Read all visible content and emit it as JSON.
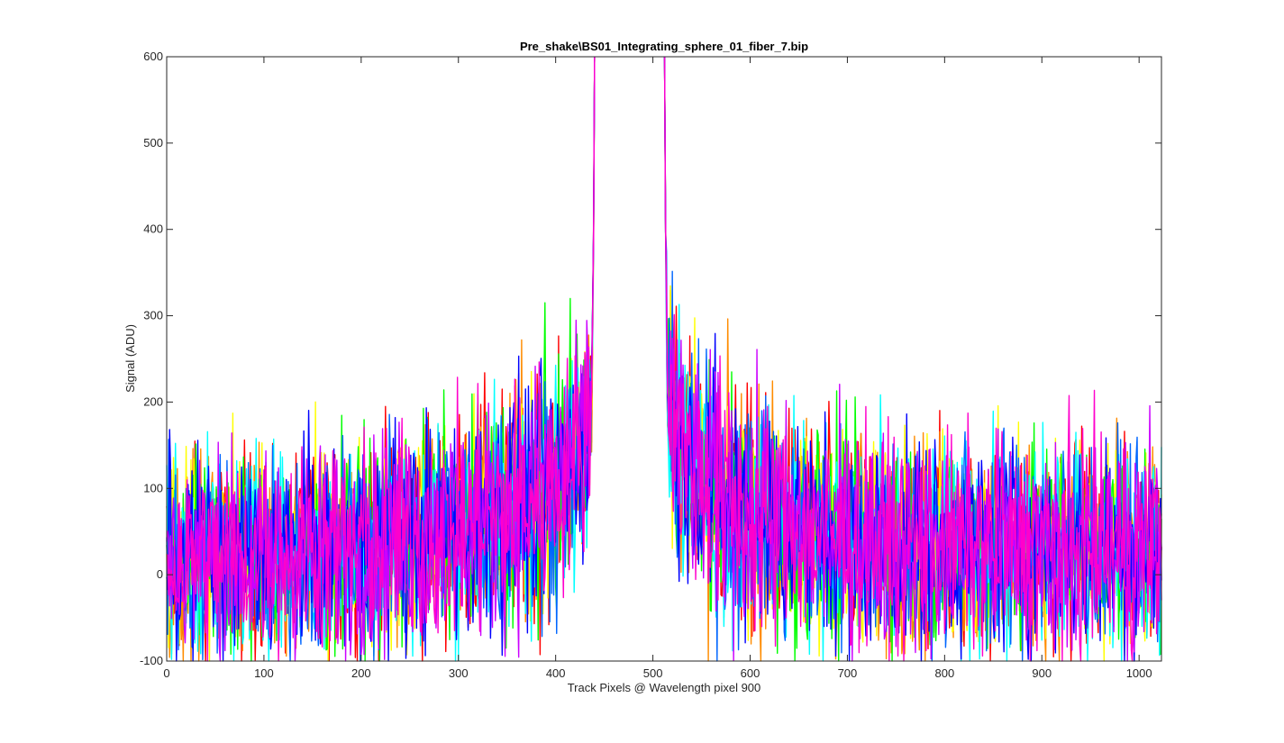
{
  "chart_data": {
    "type": "line",
    "title": "Pre_shake\\BS01_Integrating_sphere_01_fiber_7.bip",
    "xlabel": "Track Pixels @ Wavelength pixel 900",
    "ylabel": "Signal (ADU)",
    "xlim": [
      0,
      1023
    ],
    "ylim": [
      -100,
      600
    ],
    "xticks": [
      0,
      100,
      200,
      300,
      400,
      500,
      600,
      700,
      800,
      900,
      1000
    ],
    "yticks": [
      -100,
      0,
      100,
      200,
      300,
      400,
      500,
      600
    ],
    "grid": false,
    "legend": "none",
    "gap_range": [
      442,
      510
    ],
    "peak_left_x": 440,
    "peak_right_x": 512,
    "series_colors": [
      "#ff0000",
      "#ff8c00",
      "#ffff00",
      "#00ff00",
      "#00ffff",
      "#0066ff",
      "#0000ff",
      "#cc00ff",
      "#ff00cc"
    ],
    "profile": {
      "left_baseline": [
        [
          0,
          20
        ],
        [
          100,
          22
        ],
        [
          200,
          35
        ],
        [
          300,
          55
        ],
        [
          350,
          75
        ],
        [
          400,
          105
        ],
        [
          425,
          140
        ],
        [
          437,
          200
        ],
        [
          441,
          600
        ]
      ],
      "right_baseline": [
        [
          511,
          600
        ],
        [
          515,
          220
        ],
        [
          530,
          140
        ],
        [
          560,
          95
        ],
        [
          600,
          70
        ],
        [
          650,
          50
        ],
        [
          700,
          40
        ],
        [
          800,
          35
        ],
        [
          1023,
          30
        ]
      ],
      "noise_amplitude": 55
    }
  }
}
